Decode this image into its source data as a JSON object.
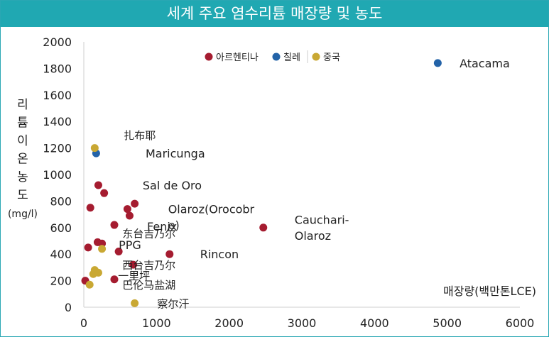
{
  "title": "세계 주요 염수리튬 매장량 및 농도",
  "colors": {
    "header_bg": "#20a8b2",
    "argentina": "#a51c30",
    "chile": "#2363a8",
    "china": "#c9a833"
  },
  "chart_data": {
    "type": "scatter",
    "title": "세계 주요 염수리튬 매장량 및 농도",
    "xlabel": "매장량(백만톤LCE)",
    "ylabel": "리튬이온농도(mg/l)",
    "xlim": [
      0,
      6000
    ],
    "ylim": [
      0,
      2000
    ],
    "xticks": [
      "0",
      "1000",
      "2000",
      "3000",
      "4000",
      "5000",
      "6000"
    ],
    "yticks": [
      "0",
      "200",
      "400",
      "600",
      "800",
      "1000",
      "1200",
      "1400",
      "1600",
      "1800",
      "2000"
    ],
    "grid": false,
    "legend_position": "top-center",
    "series": [
      {
        "name": "아르헨티나",
        "color": "#a51c30",
        "points": [
          {
            "x": 20,
            "y": 200
          },
          {
            "x": 60,
            "y": 450
          },
          {
            "x": 90,
            "y": 750
          },
          {
            "x": 190,
            "y": 490
          },
          {
            "x": 250,
            "y": 480
          },
          {
            "x": 200,
            "y": 920
          },
          {
            "x": 280,
            "y": 860
          },
          {
            "x": 420,
            "y": 620
          },
          {
            "x": 480,
            "y": 420
          },
          {
            "x": 420,
            "y": 210
          },
          {
            "x": 680,
            "y": 320
          },
          {
            "x": 600,
            "y": 740
          },
          {
            "x": 630,
            "y": 690
          },
          {
            "x": 700,
            "y": 780
          },
          {
            "x": 1180,
            "y": 400
          },
          {
            "x": 2470,
            "y": 600
          }
        ]
      },
      {
        "name": "칠레",
        "color": "#2363a8",
        "points": [
          {
            "x": 170,
            "y": 1160
          },
          {
            "x": 4870,
            "y": 1840
          }
        ]
      },
      {
        "name": "중국",
        "color": "#c9a833",
        "points": [
          {
            "x": 150,
            "y": 1200
          },
          {
            "x": 80,
            "y": 170
          },
          {
            "x": 130,
            "y": 250
          },
          {
            "x": 150,
            "y": 280
          },
          {
            "x": 200,
            "y": 260
          },
          {
            "x": 250,
            "y": 440
          },
          {
            "x": 700,
            "y": 30
          }
        ]
      }
    ],
    "annotations": [
      {
        "text": "Atacama",
        "x": 5170,
        "y": 1840,
        "style": "latin"
      },
      {
        "text": "扎布耶",
        "x": 550,
        "y": 1300,
        "style": "cjk"
      },
      {
        "text": "Maricunga",
        "x": 850,
        "y": 1160,
        "style": "latin"
      },
      {
        "text": "Sal de Oro",
        "x": 810,
        "y": 920,
        "style": "latin"
      },
      {
        "text": "Olaroz(Orocobr",
        "x": 1160,
        "y": 740,
        "style": "latin"
      },
      {
        "text": "e)",
        "x": 1160,
        "y": 620,
        "style": "latin"
      },
      {
        "text": "Fenix",
        "x": 870,
        "y": 610,
        "style": "latin"
      },
      {
        "text": "Cauchari-",
        "x": 2900,
        "y": 660,
        "style": "latin"
      },
      {
        "text": "Olaroz",
        "x": 2900,
        "y": 540,
        "style": "latin"
      },
      {
        "text": "东台吉乃尔",
        "x": 530,
        "y": 560,
        "style": "cjk"
      },
      {
        "text": "PPG",
        "x": 480,
        "y": 470,
        "style": "latin"
      },
      {
        "text": "Rincon",
        "x": 1600,
        "y": 400,
        "style": "latin"
      },
      {
        "text": "西台吉乃尔",
        "x": 530,
        "y": 320,
        "style": "cjk"
      },
      {
        "text": "一里坪",
        "x": 470,
        "y": 240,
        "style": "cjk"
      },
      {
        "text": "巴伦马盐湖",
        "x": 530,
        "y": 170,
        "style": "cjk"
      },
      {
        "text": "察尔汗",
        "x": 1010,
        "y": 30,
        "style": "cjk"
      }
    ]
  }
}
